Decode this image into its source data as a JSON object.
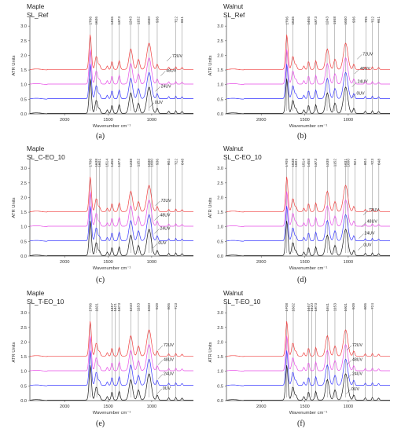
{
  "figure": {
    "colors": {
      "0UV": "#1a1a1a",
      "24UV": "#3838ff",
      "48UV": "#e84fe8",
      "72UV": "#f04040",
      "axis": "#555555",
      "marker": "#666666"
    }
  },
  "chart_data": [
    {
      "type": "line",
      "panel_label": "(a)",
      "title": "Maple",
      "subtitle": "SL_Ref",
      "xlabel": "Wavenumber cm⁻¹",
      "ylabel": "ATR Units",
      "xlim": [
        2400,
        520
      ],
      "ylim": [
        0,
        3.3
      ],
      "x_ticks": [
        "2000",
        "1500",
        "1000"
      ],
      "y_ticks": [
        "0.0",
        "0.5",
        "1.0",
        "1.5",
        "2.0",
        "2.5",
        "3.0"
      ],
      "peak_labels": [
        "1706",
        "1636",
        "1456",
        "1373",
        "1243",
        "1152",
        "1030",
        "936",
        "722",
        "651"
      ],
      "series": [
        {
          "name": "0UV",
          "offset": 0.0,
          "label_pos": [
            1000,
            0.3
          ]
        },
        {
          "name": "24UV",
          "offset": 0.5,
          "label_pos": [
            930,
            0.85
          ]
        },
        {
          "name": "48UV",
          "offset": 1.0,
          "label_pos": [
            870,
            1.38
          ]
        },
        {
          "name": "72UV",
          "offset": 1.5,
          "label_pos": [
            800,
            1.88
          ]
        }
      ]
    },
    {
      "type": "line",
      "panel_label": "(b)",
      "title": "Walnut",
      "subtitle": "SL_Ref",
      "xlabel": "Wavenumber cm⁻¹",
      "ylabel": "ATR Units",
      "xlim": [
        2400,
        520
      ],
      "ylim": [
        0,
        3.3
      ],
      "x_ticks": [
        "2000",
        "1500",
        "1000"
      ],
      "y_ticks": [
        "0.0",
        "0.5",
        "1.0",
        "1.5",
        "2.0",
        "2.5",
        "3.0"
      ],
      "peak_labels": [
        "1706",
        "1636",
        "1456",
        "1373",
        "1243",
        "1158",
        "1030",
        "936",
        "795",
        "722",
        "651"
      ],
      "series": [
        {
          "name": "0UV",
          "offset": 0.0,
          "label_pos": [
            940,
            0.6
          ]
        },
        {
          "name": "24UV",
          "offset": 0.5,
          "label_pos": [
            930,
            1.0
          ]
        },
        {
          "name": "48UV",
          "offset": 1.0,
          "label_pos": [
            900,
            1.45
          ]
        },
        {
          "name": "72UV",
          "offset": 1.5,
          "label_pos": [
            870,
            1.95
          ]
        }
      ]
    },
    {
      "type": "line",
      "panel_label": "(c)",
      "title": "Maple",
      "subtitle": "SL_C-EO_10",
      "xlabel": "Wavenumber cm⁻¹",
      "ylabel": "ATR Units",
      "xlim": [
        2400,
        520
      ],
      "ylim": [
        0,
        3.3
      ],
      "x_ticks": [
        "2000",
        "1500",
        "1000"
      ],
      "y_ticks": [
        "0.0",
        "0.5",
        "1.0",
        "1.5",
        "2.0",
        "2.5",
        "3.0"
      ],
      "peak_labels": [
        "1706",
        "1638",
        "1601",
        "1514",
        "1456",
        "1373",
        "1238",
        "1152",
        "1030",
        "1000",
        "936",
        "804",
        "722",
        "648"
      ],
      "series": [
        {
          "name": "0UV",
          "offset": 0.0,
          "label_pos": [
            960,
            0.35
          ]
        },
        {
          "name": "24UV",
          "offset": 0.5,
          "label_pos": [
            940,
            0.85
          ]
        },
        {
          "name": "48UV",
          "offset": 1.0,
          "label_pos": [
            940,
            1.3
          ]
        },
        {
          "name": "72UV",
          "offset": 1.5,
          "label_pos": [
            930,
            1.8
          ]
        }
      ]
    },
    {
      "type": "line",
      "panel_label": "(d)",
      "title": "Walnut",
      "subtitle": "SL_C-EO_10",
      "xlabel": "Wavenumber cm⁻¹",
      "ylabel": "ATR Units",
      "xlim": [
        2400,
        520
      ],
      "ylim": [
        0,
        3.3
      ],
      "x_ticks": [
        "2000",
        "1500",
        "1000"
      ],
      "y_ticks": [
        "0.0",
        "0.5",
        "1.0",
        "1.5",
        "2.0",
        "2.5",
        "3.0"
      ],
      "peak_labels": [
        "1709",
        "1638",
        "1601",
        "1514",
        "1458",
        "1373",
        "1239",
        "1152",
        "1031",
        "1000",
        "921",
        "804",
        "723",
        "648"
      ],
      "series": [
        {
          "name": "0UV",
          "offset": 0.0,
          "label_pos": [
            860,
            0.28
          ]
        },
        {
          "name": "24UV",
          "offset": 0.5,
          "label_pos": [
            850,
            0.68
          ]
        },
        {
          "name": "48UV",
          "offset": 1.0,
          "label_pos": [
            820,
            1.08
          ]
        },
        {
          "name": "72UV",
          "offset": 1.5,
          "label_pos": [
            800,
            1.48
          ]
        }
      ]
    },
    {
      "type": "line",
      "panel_label": "(e)",
      "title": "Maple",
      "subtitle": "SL_T-EO_10",
      "xlabel": "Wavenumber cm⁻¹",
      "ylabel": "ATR Units",
      "xlim": [
        2400,
        520
      ],
      "ylim": [
        0,
        3.3
      ],
      "x_ticks": [
        "2000",
        "1500",
        "1000"
      ],
      "y_ticks": [
        "0.0",
        "0.5",
        "1.0",
        "1.5",
        "2.0",
        "2.5",
        "3.0"
      ],
      "peak_labels": [
        "1706",
        "1631",
        "1457",
        "1421",
        "1373",
        "1240",
        "1153",
        "1030",
        "939",
        "806",
        "723"
      ],
      "series": [
        {
          "name": "0UV",
          "offset": 0.0,
          "label_pos": [
            910,
            0.32
          ]
        },
        {
          "name": "24UV",
          "offset": 0.5,
          "label_pos": [
            900,
            0.82
          ]
        },
        {
          "name": "48UV",
          "offset": 1.0,
          "label_pos": [
            900,
            1.3
          ]
        },
        {
          "name": "72UV",
          "offset": 1.5,
          "label_pos": [
            900,
            1.8
          ]
        }
      ]
    },
    {
      "type": "line",
      "panel_label": "(f)",
      "title": "Walnut",
      "subtitle": "SL_T-EO_10",
      "xlabel": "Wavenumber cm⁻¹",
      "ylabel": "ATR Units",
      "xlim": [
        2400,
        520
      ],
      "ylim": [
        0,
        3.3
      ],
      "x_ticks": [
        "2000",
        "1500",
        "1000"
      ],
      "y_ticks": [
        "0.0",
        "0.5",
        "1.0",
        "1.5",
        "2.0",
        "2.5",
        "3.0"
      ],
      "peak_labels": [
        "1708",
        "1632",
        "1457",
        "1420",
        "1373",
        "1241",
        "1153",
        "1031",
        "939",
        "806",
        "724"
      ],
      "series": [
        {
          "name": "0UV",
          "offset": 0.0,
          "label_pos": [
            1000,
            0.3
          ]
        },
        {
          "name": "24UV",
          "offset": 0.5,
          "label_pos": [
            990,
            0.82
          ]
        },
        {
          "name": "48UV",
          "offset": 1.0,
          "label_pos": [
            990,
            1.3
          ]
        },
        {
          "name": "72UV",
          "offset": 1.5,
          "label_pos": [
            990,
            1.8
          ]
        }
      ]
    }
  ]
}
